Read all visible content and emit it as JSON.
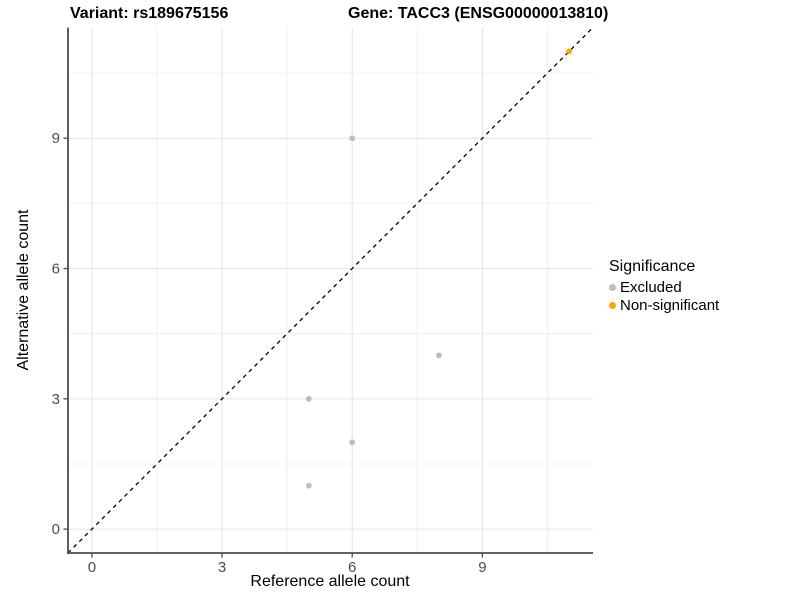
{
  "titles": {
    "left": "Variant: rs189675156",
    "right": "Gene: TACC3 (ENSG00000013810)"
  },
  "chart_data": {
    "type": "scatter",
    "xlabel": "Reference allele count",
    "ylabel": "Alternative allele count",
    "x_ticks": [
      0,
      3,
      6,
      9
    ],
    "y_ticks": [
      0,
      3,
      6,
      9
    ],
    "x_minor_ticks": [
      1.5,
      4.5,
      7.5,
      10.5
    ],
    "y_minor_ticks": [
      1.5,
      4.5,
      7.5,
      10.5
    ],
    "xlim": [
      -0.55,
      11.55
    ],
    "ylim": [
      -0.55,
      11.55
    ],
    "grid": true,
    "identity_line": {
      "style": "dashed",
      "from": [
        -0.55,
        -0.55
      ],
      "to": [
        11.55,
        11.55
      ],
      "color": "#000000"
    },
    "series": [
      {
        "name": "Excluded",
        "color": "#bebebe",
        "points": [
          [
            6,
            9
          ],
          [
            8,
            4
          ],
          [
            5,
            3
          ],
          [
            6,
            2
          ],
          [
            5,
            1
          ]
        ]
      },
      {
        "name": "Non-significant",
        "color": "#ffa500",
        "points": [
          [
            11,
            11
          ]
        ]
      }
    ],
    "legend": {
      "title": "Significance",
      "position": "right"
    }
  },
  "colors": {
    "axis_line": "#4d4d4d",
    "tick_label": "#4d4d4d",
    "grid_major": "#e4e4e4",
    "grid_minor": "#f0f0f0",
    "background": "#ffffff"
  }
}
